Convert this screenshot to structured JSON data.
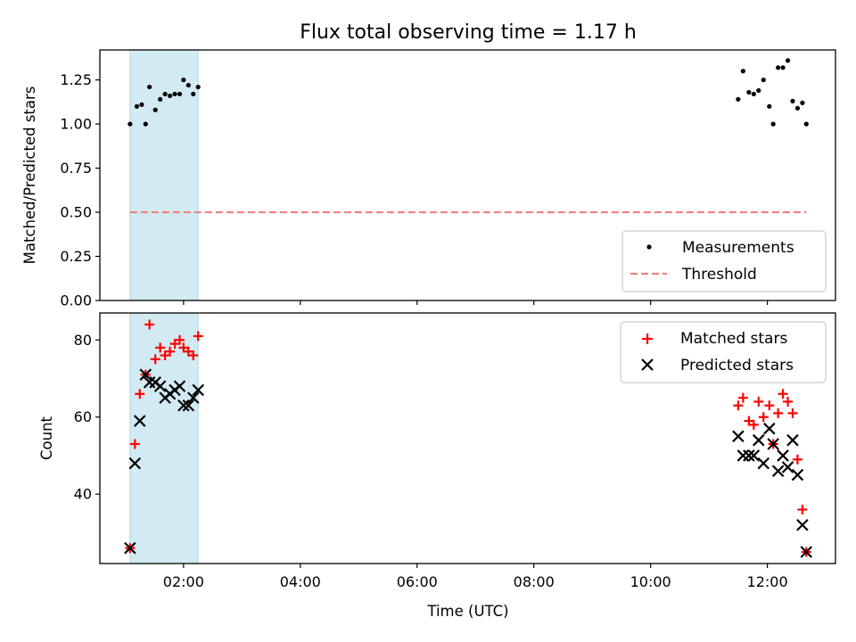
{
  "chart_data": [
    {
      "type": "scatter",
      "title": "Flux total observing time = 1.17 h",
      "xlabel": "",
      "ylabel": "Matched/Predicted stars",
      "xlim": [
        "00:34",
        "13:10"
      ],
      "ylim": [
        0,
        1.42
      ],
      "yticks": [
        "0.00",
        "0.25",
        "0.50",
        "0.75",
        "1.00",
        "1.25"
      ],
      "grid": false,
      "legend_position": "lower right",
      "shaded_interval": {
        "x0": "01:05",
        "x1": "02:15",
        "color": "#add8e6"
      },
      "series": [
        {
          "name": "Measurements",
          "marker": "dot",
          "color": "#000000",
          "x": [
            "01:05",
            "01:12",
            "01:17",
            "01:21",
            "01:25",
            "01:31",
            "01:36",
            "01:41",
            "01:46",
            "01:51",
            "01:56",
            "02:00",
            "02:05",
            "02:10",
            "02:15",
            "11:30",
            "11:35",
            "11:41",
            "11:46",
            "11:51",
            "11:56",
            "12:02",
            "12:06",
            "12:11",
            "12:16",
            "12:21",
            "12:26",
            "12:31",
            "12:36",
            "12:40"
          ],
          "y": [
            1.0,
            1.1,
            1.11,
            1.0,
            1.21,
            1.08,
            1.14,
            1.17,
            1.16,
            1.17,
            1.17,
            1.25,
            1.22,
            1.17,
            1.21,
            1.14,
            1.3,
            1.18,
            1.17,
            1.19,
            1.25,
            1.1,
            1.0,
            1.32,
            1.32,
            1.36,
            1.13,
            1.09,
            1.12,
            1.0
          ]
        },
        {
          "name": "Threshold",
          "style": "dashed",
          "color": "#f08080",
          "x": [
            "01:05",
            "12:40"
          ],
          "y": [
            0.5,
            0.5
          ]
        }
      ]
    },
    {
      "type": "scatter",
      "title": "",
      "xlabel": "Time (UTC)",
      "ylabel": "Count",
      "xlim": [
        "00:34",
        "13:10"
      ],
      "ylim": [
        22,
        87
      ],
      "xticks": [
        "02:00",
        "04:00",
        "06:00",
        "08:00",
        "10:00",
        "12:00"
      ],
      "yticks": [
        "40",
        "60",
        "80"
      ],
      "grid": false,
      "legend_position": "upper right",
      "shaded_interval": {
        "x0": "01:05",
        "x1": "02:15",
        "color": "#add8e6"
      },
      "series": [
        {
          "name": "Matched stars",
          "marker": "plus",
          "color": "#ff0000",
          "x": [
            "01:05",
            "01:10",
            "01:15",
            "01:21",
            "01:25",
            "01:31",
            "01:36",
            "01:41",
            "01:46",
            "01:51",
            "01:56",
            "02:00",
            "02:05",
            "02:10",
            "02:15",
            "11:30",
            "11:35",
            "11:41",
            "11:46",
            "11:51",
            "11:56",
            "12:02",
            "12:06",
            "12:11",
            "12:16",
            "12:21",
            "12:26",
            "12:31",
            "12:36",
            "12:40"
          ],
          "y": [
            26,
            53,
            66,
            71,
            84,
            75,
            78,
            76,
            77,
            79,
            80,
            78,
            77,
            76,
            81,
            63,
            65,
            59,
            58,
            64,
            60,
            63,
            53,
            61,
            66,
            64,
            61,
            49,
            36,
            25
          ]
        },
        {
          "name": "Predicted stars",
          "marker": "x",
          "color": "#000000",
          "x": [
            "01:05",
            "01:10",
            "01:15",
            "01:21",
            "01:25",
            "01:31",
            "01:36",
            "01:41",
            "01:46",
            "01:51",
            "01:56",
            "02:00",
            "02:05",
            "02:10",
            "02:15",
            "11:30",
            "11:35",
            "11:41",
            "11:46",
            "11:51",
            "11:56",
            "12:02",
            "12:06",
            "12:11",
            "12:16",
            "12:21",
            "12:26",
            "12:31",
            "12:36",
            "12:40"
          ],
          "y": [
            26,
            48,
            59,
            71,
            69,
            69,
            68,
            65,
            66,
            67,
            68,
            63,
            63,
            65,
            67,
            55,
            50,
            50,
            50,
            54,
            48,
            57,
            53,
            46,
            50,
            47,
            54,
            45,
            32,
            25
          ]
        }
      ]
    }
  ]
}
